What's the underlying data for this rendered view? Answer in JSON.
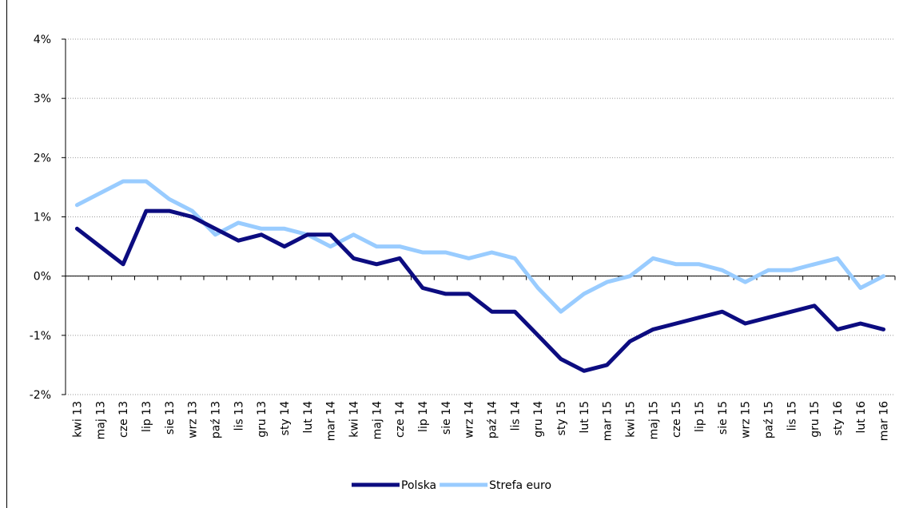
{
  "chart_data": {
    "type": "line",
    "categories": [
      "kwi 13",
      "maj 13",
      "cze 13",
      "lip 13",
      "sie 13",
      "wrz 13",
      "paź 13",
      "lis 13",
      "gru 13",
      "sty 14",
      "lut 14",
      "mar 14",
      "kwi 14",
      "maj 14",
      "cze 14",
      "lip 14",
      "sie 14",
      "wrz 14",
      "paź 14",
      "lis 14",
      "gru 14",
      "sty 15",
      "lut 15",
      "mar 15",
      "kwi 15",
      "maj 15",
      "cze 15",
      "lip 15",
      "sie 15",
      "wrz 15",
      "paź 15",
      "lis 15",
      "gru 15",
      "sty 16",
      "lut 16",
      "mar 16"
    ],
    "series": [
      {
        "name": "Polska",
        "color": "#0c0c80",
        "values": [
          0.8,
          0.5,
          0.2,
          1.1,
          1.1,
          1.0,
          0.8,
          0.6,
          0.7,
          0.5,
          0.7,
          0.7,
          0.3,
          0.2,
          0.3,
          -0.2,
          -0.3,
          -0.3,
          -0.6,
          -0.6,
          -1.0,
          -1.4,
          -1.6,
          -1.5,
          -1.1,
          -0.9,
          -0.8,
          -0.7,
          -0.6,
          -0.8,
          -0.7,
          -0.6,
          -0.5,
          -0.9,
          -0.8,
          -0.9
        ]
      },
      {
        "name": "Strefa euro",
        "color": "#99ccff",
        "values": [
          1.2,
          1.4,
          1.6,
          1.6,
          1.3,
          1.1,
          0.7,
          0.9,
          0.8,
          0.8,
          0.7,
          0.5,
          0.7,
          0.5,
          0.5,
          0.4,
          0.4,
          0.3,
          0.4,
          0.3,
          -0.2,
          -0.6,
          -0.3,
          -0.1,
          0.0,
          0.3,
          0.2,
          0.2,
          0.1,
          -0.1,
          0.1,
          0.1,
          0.2,
          0.3,
          -0.2,
          0.0
        ]
      }
    ],
    "ylim": [
      -2,
      4
    ],
    "yticks": [
      {
        "value": -2,
        "label": "-2%"
      },
      {
        "value": -1,
        "label": "-1%"
      },
      {
        "value": 0,
        "label": "0%"
      },
      {
        "value": 1,
        "label": "1%"
      },
      {
        "value": 2,
        "label": "2%"
      },
      {
        "value": 3,
        "label": "3%"
      },
      {
        "value": 4,
        "label": "4%"
      }
    ],
    "grid": true
  }
}
